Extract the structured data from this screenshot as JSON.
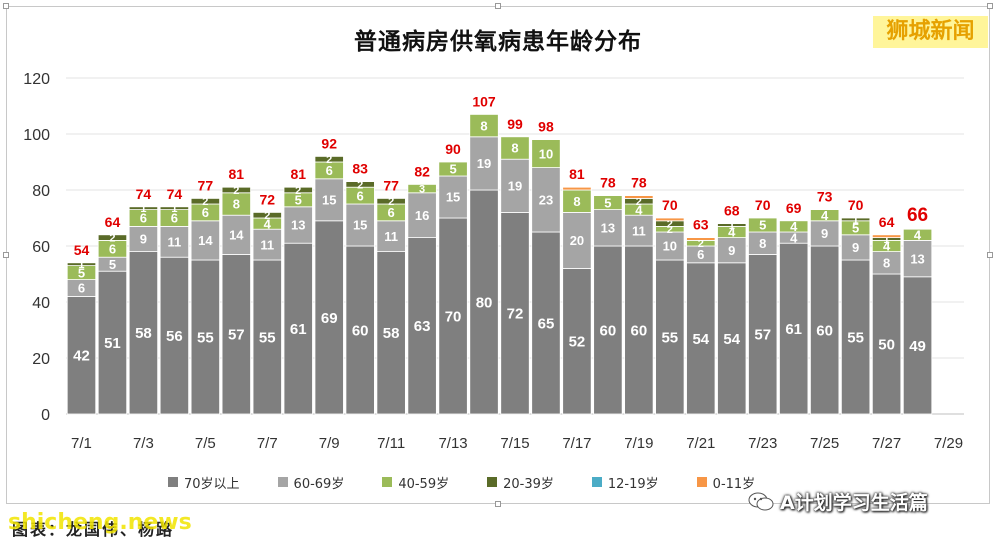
{
  "title": "普通病房供氧病患年龄分布",
  "watermark_top": "狮城新闻",
  "watermark_bottom": "shicheng.news",
  "footer_caption": "图表：龙国伟、杨路",
  "wechat_label": "A计划学习生活篇",
  "colors": {
    "70+": "#7f7f7f",
    "60-69": "#a5a5a5",
    "40-59": "#9bbb59",
    "20-39": "#5a6b28",
    "12-19": "#4bacc6",
    "0-11": "#f79646",
    "total_label": "#e00000"
  },
  "chart_data": {
    "type": "bar",
    "stacked": true,
    "title": "普通病房供氧病患年龄分布",
    "categories": [
      "7/1",
      "7/2",
      "7/3",
      "7/4",
      "7/5",
      "7/6",
      "7/7",
      "7/8",
      "7/9",
      "7/10",
      "7/11",
      "7/12",
      "7/13",
      "7/14",
      "7/15",
      "7/16",
      "7/17",
      "7/18",
      "7/19",
      "7/20",
      "7/21",
      "7/22",
      "7/23",
      "7/24",
      "7/25",
      "7/26",
      "7/27",
      "7/28",
      "7/29"
    ],
    "x_tick_labels": [
      "7/1",
      "7/3",
      "7/5",
      "7/7",
      "7/9",
      "7/11",
      "7/13",
      "7/15",
      "7/17",
      "7/19",
      "7/21",
      "7/23",
      "7/25",
      "7/27",
      "7/29"
    ],
    "ylim": [
      0,
      120
    ],
    "yticks": [
      0,
      20,
      40,
      60,
      80,
      100,
      120
    ],
    "grid": true,
    "legend_position": "bottom",
    "series": [
      {
        "name": "70岁以上",
        "values": [
          42,
          51,
          58,
          56,
          55,
          57,
          55,
          61,
          69,
          60,
          58,
          63,
          70,
          80,
          72,
          65,
          52,
          60,
          60,
          55,
          54,
          54,
          57,
          61,
          60,
          55,
          50,
          49,
          null
        ]
      },
      {
        "name": "60-69岁",
        "values": [
          6,
          5,
          9,
          11,
          14,
          14,
          11,
          13,
          15,
          15,
          11,
          16,
          15,
          19,
          19,
          23,
          20,
          13,
          11,
          10,
          6,
          9,
          8,
          4,
          9,
          9,
          8,
          13,
          null
        ]
      },
      {
        "name": "40-59岁",
        "values": [
          5,
          6,
          6,
          6,
          6,
          8,
          4,
          5,
          6,
          6,
          6,
          3,
          5,
          8,
          8,
          10,
          8,
          5,
          4,
          2,
          2,
          4,
          5,
          4,
          4,
          5,
          4,
          4,
          null
        ]
      },
      {
        "name": "20-39岁",
        "values": [
          1,
          2,
          1,
          1,
          2,
          2,
          2,
          2,
          2,
          2,
          2,
          0,
          0,
          0,
          0,
          0,
          0,
          0,
          2,
          2,
          0,
          1,
          0,
          0,
          0,
          1,
          1,
          0,
          null
        ]
      },
      {
        "name": "12-19岁",
        "values": [
          0,
          0,
          0,
          0,
          0,
          0,
          0,
          0,
          0,
          0,
          0,
          0,
          0,
          0,
          0,
          0,
          0,
          0,
          0,
          0,
          0,
          0,
          0,
          0,
          0,
          0,
          0,
          0,
          null
        ]
      },
      {
        "name": "0-11岁",
        "values": [
          0,
          0,
          0,
          0,
          0,
          0,
          0,
          0,
          0,
          0,
          0,
          0,
          0,
          0,
          0,
          0,
          1,
          0,
          1,
          1,
          1,
          0,
          0,
          0,
          0,
          0,
          1,
          0,
          null
        ]
      }
    ],
    "segment_labels": [
      [
        "42",
        "6",
        "5",
        "1",
        "",
        ""
      ],
      [
        "51",
        "5",
        "6",
        "2",
        "",
        ""
      ],
      [
        "58",
        "9",
        "6",
        "1",
        "",
        ""
      ],
      [
        "56",
        "11",
        "6",
        "1",
        "",
        ""
      ],
      [
        "55",
        "14",
        "6",
        "2",
        "",
        ""
      ],
      [
        "57",
        "14",
        "8",
        "2",
        "",
        ""
      ],
      [
        "55",
        "11",
        "4",
        "2",
        "",
        ""
      ],
      [
        "61",
        "13",
        "5",
        "2",
        "",
        ""
      ],
      [
        "69",
        "15",
        "6",
        "2",
        "",
        ""
      ],
      [
        "60",
        "15",
        "6",
        "2",
        "",
        ""
      ],
      [
        "58",
        "11",
        "6",
        "2",
        "",
        ""
      ],
      [
        "63",
        "16",
        "3",
        "",
        "",
        ""
      ],
      [
        "70",
        "15",
        "5",
        "",
        "",
        ""
      ],
      [
        "80",
        "19",
        "8",
        "",
        "",
        ""
      ],
      [
        "72",
        "19",
        "8",
        "",
        "",
        ""
      ],
      [
        "65",
        "23",
        "10",
        "",
        "",
        ""
      ],
      [
        "52",
        "20",
        "8",
        "",
        "",
        ""
      ],
      [
        "60",
        "13",
        "5",
        "",
        "",
        ""
      ],
      [
        "60",
        "11",
        "4",
        "2",
        "",
        ""
      ],
      [
        "55",
        "10",
        "2",
        "2",
        "",
        ""
      ],
      [
        "54",
        "6",
        "2",
        "",
        "",
        ""
      ],
      [
        "54",
        "9",
        "4",
        "1",
        "",
        ""
      ],
      [
        "57",
        "8",
        "5",
        "",
        "",
        ""
      ],
      [
        "61",
        "4",
        "4",
        "",
        "",
        ""
      ],
      [
        "60",
        "9",
        "4",
        "",
        "",
        ""
      ],
      [
        "55",
        "9",
        "5",
        "1",
        "",
        ""
      ],
      [
        "50",
        "8",
        "4",
        "1",
        "",
        ""
      ],
      [
        "49",
        "13",
        "4",
        "",
        "",
        ""
      ],
      [
        "",
        "",
        "",
        "",
        "",
        ""
      ]
    ],
    "totals": [
      54,
      64,
      74,
      74,
      77,
      81,
      72,
      81,
      92,
      83,
      77,
      82,
      90,
      107,
      99,
      98,
      81,
      78,
      78,
      70,
      63,
      68,
      70,
      69,
      73,
      70,
      64,
      66,
      null
    ],
    "highlight_last_total": true
  }
}
